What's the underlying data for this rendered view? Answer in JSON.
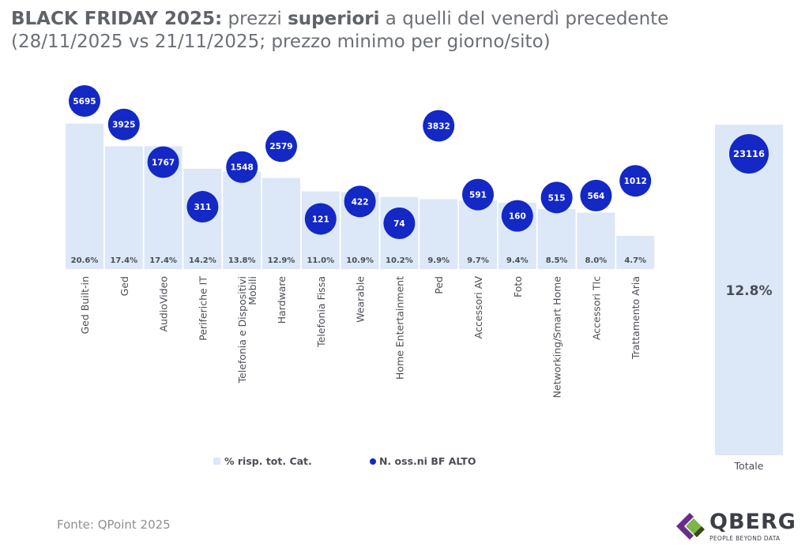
{
  "header": {
    "title_bold_1": "BLACK FRIDAY 2025:",
    "title_text_1": " prezzi ",
    "title_bold_2": "superiori",
    "title_text_2": " a quelli del venerdì precedente",
    "subtitle": "(28/11/2025 vs 21/11/2025; prezzo minimo per giorno/sito)"
  },
  "footer": {
    "source": "Fonte: QPoint 2025",
    "logo_name": "QBERG",
    "logo_tagline": "PEOPLE BEYOND DATA"
  },
  "colors": {
    "bar": "#dce8f7",
    "dot": "#1328c4",
    "text": "#4a4e55",
    "logo_purple": "#6a2c8c",
    "logo_green": "#7ab648"
  },
  "chart_data": {
    "type": "bar",
    "categories": [
      "Ged Built-in",
      "Ged",
      "AudioVideo",
      "Periferiche IT",
      "Telefonia e Dispositivi Mobili",
      "Hardware",
      "Telefonia Fissa",
      "Wearable",
      "Home Entertainment",
      "Ped",
      "Accessori AV",
      "Foto",
      "Networking/Smart Home",
      "Accessori Tlc",
      "Trattamento Aria"
    ],
    "series": [
      {
        "name": "% risp. tot. Cat.",
        "kind": "bar",
        "values": [
          20.6,
          17.4,
          17.4,
          14.2,
          13.8,
          12.9,
          11.0,
          10.9,
          10.2,
          9.9,
          9.7,
          9.4,
          8.5,
          8.0,
          4.7
        ],
        "labels": [
          "20.6%",
          "17.4%",
          "17.4%",
          "14.2%",
          "13.8%",
          "12.9%",
          "11.0%",
          "10.9%",
          "10.2%",
          "9.9%",
          "9.7%",
          "9.4%",
          "8.5%",
          "8.0%",
          "4.7%"
        ]
      },
      {
        "name": "N. oss.ni BF ALTO",
        "kind": "dot",
        "values": [
          5695,
          3925,
          1767,
          311,
          1548,
          2579,
          121,
          422,
          74,
          3832,
          591,
          160,
          515,
          564,
          1012
        ]
      }
    ],
    "total": {
      "category": "Totale",
      "value": 12.8,
      "label": "12.8%",
      "observations": 23116
    },
    "legend": [
      "% risp. tot. Cat.",
      "N. oss.ni BF ALTO"
    ],
    "legend_position": "bottom"
  }
}
